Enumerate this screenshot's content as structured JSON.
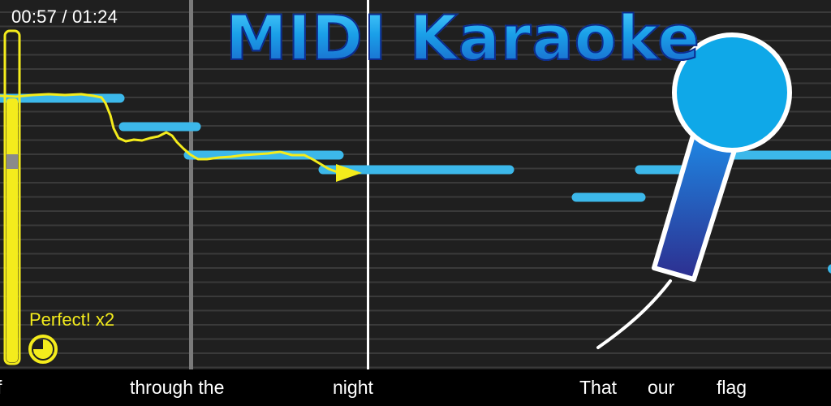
{
  "app": {
    "title": "MIDI Karaoke"
  },
  "playback": {
    "time_display": "00:57 / 01:24",
    "current_seconds": 57,
    "total_seconds": 84
  },
  "feedback": {
    "rating_text": "Perfect! x2"
  },
  "volume_meter": {
    "level": 0.8
  },
  "lyrics": {
    "words": [
      "f",
      "through the",
      "night",
      "That",
      "our",
      "flag"
    ]
  },
  "colors": {
    "background": "#1f1f1f",
    "staff_line": "#3a3a3a",
    "note": "#3cb8ea",
    "pitch_trace": "#f4ec1c",
    "meter": "#f4ec1c",
    "title_fill": "#1aa6ef",
    "title_outline": "#0d2a8c",
    "mic_head": "#0fa8e8",
    "mic_handle_top": "#1e7fe0",
    "mic_handle_bottom": "#2d2e8f"
  },
  "icons": {
    "microphone": "microphone-icon",
    "progress_pie": "progress-pie-icon",
    "cursor_arrow": "play-position-arrow-icon"
  }
}
